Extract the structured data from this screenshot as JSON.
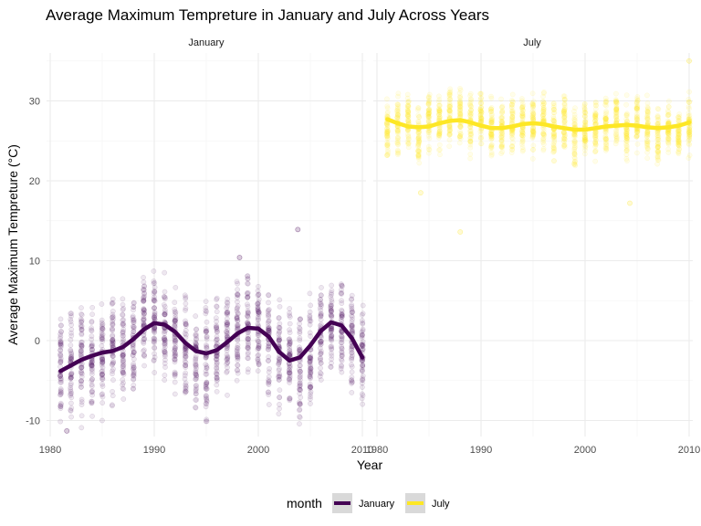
{
  "chart_data": {
    "type": "scatter",
    "title": "Average Maximum Tempreture in January and July Across Years",
    "xlabel": "Year",
    "ylabel": "Average Maximum Tempreture (°C)",
    "xlim": [
      1980,
      2010
    ],
    "ylim": [
      -12,
      36
    ],
    "x_ticks": [
      1980,
      1990,
      2000,
      2010
    ],
    "y_ticks": [
      -10,
      0,
      10,
      20,
      30
    ],
    "grid": true,
    "facets": [
      {
        "label": "January",
        "color": "#440154",
        "scatter_spread": [
          -8.5,
          6.5
        ],
        "outliers": [
          {
            "x": 2003.8,
            "y": 13.9
          },
          {
            "x": 1998.2,
            "y": 10.4
          },
          {
            "x": 1981.6,
            "y": -11.3
          }
        ],
        "smooth": {
          "x": [
            1981,
            1982,
            1983,
            1984,
            1985,
            1986,
            1987,
            1988,
            1989,
            1990,
            1991,
            1992,
            1993,
            1994,
            1995,
            1996,
            1997,
            1998,
            1999,
            2000,
            2001,
            2002,
            2003,
            2004,
            2005,
            2006,
            2007,
            2008,
            2009,
            2010
          ],
          "y": [
            -3.8,
            -3.1,
            -2.4,
            -1.9,
            -1.5,
            -1.3,
            -0.8,
            0.2,
            1.4,
            2.2,
            2.0,
            1.1,
            -0.3,
            -1.3,
            -1.6,
            -1.2,
            -0.2,
            0.9,
            1.6,
            1.5,
            0.5,
            -1.4,
            -2.5,
            -2.1,
            -0.6,
            1.2,
            2.3,
            1.9,
            0.3,
            -2.1
          ]
        }
      },
      {
        "label": "July",
        "color": "#fde725",
        "scatter_spread": [
          -4.5,
          4.0
        ],
        "outliers": [
          {
            "x": 1988.0,
            "y": 13.6
          },
          {
            "x": 1984.2,
            "y": 18.5
          },
          {
            "x": 2004.3,
            "y": 17.2
          },
          {
            "x": 2010.0,
            "y": 35.0
          }
        ],
        "smooth": {
          "x": [
            1981,
            1982,
            1983,
            1984,
            1985,
            1986,
            1987,
            1988,
            1989,
            1990,
            1991,
            1992,
            1993,
            1994,
            1995,
            1996,
            1997,
            1998,
            1999,
            2000,
            2001,
            2002,
            2003,
            2004,
            2005,
            2006,
            2007,
            2008,
            2009,
            2010
          ],
          "y": [
            27.7,
            27.2,
            26.8,
            26.7,
            26.8,
            27.2,
            27.5,
            27.6,
            27.3,
            26.9,
            26.6,
            26.6,
            26.8,
            27.1,
            27.2,
            27.1,
            26.8,
            26.6,
            26.4,
            26.4,
            26.6,
            26.8,
            26.9,
            27.0,
            26.9,
            26.7,
            26.6,
            26.7,
            26.9,
            27.3
          ]
        }
      }
    ],
    "legend": {
      "position": "bottom",
      "title": "month",
      "entries": [
        {
          "label": "January",
          "color": "#440154"
        },
        {
          "label": "July",
          "color": "#fde725"
        }
      ]
    }
  },
  "panel_bg": "#ffffff",
  "grid_major_color": "#ebebeb",
  "grid_minor_color": "#f5f5f5",
  "legend_key_bg": "#d9d9d9"
}
